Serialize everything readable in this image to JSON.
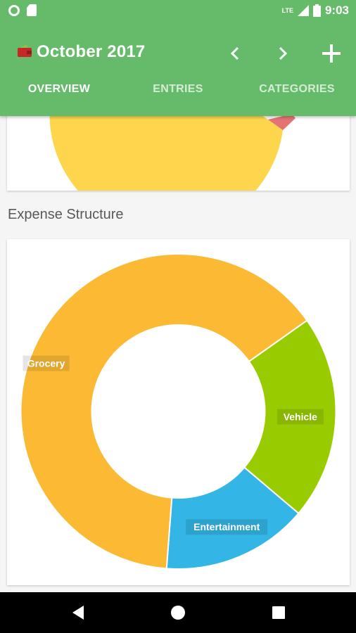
{
  "status_bar": {
    "time": "9:03",
    "network": "LTE"
  },
  "header": {
    "title": "October 2017",
    "prev_icon": "chevron-left-icon",
    "next_icon": "chevron-right-icon",
    "add_icon": "plus-icon",
    "wallet_icon": "wallet-icon"
  },
  "tabs": [
    {
      "label": "OVERVIEW",
      "active": true
    },
    {
      "label": "ENTRIES",
      "active": false
    },
    {
      "label": "CATEGORIES",
      "active": false
    }
  ],
  "expense_section": {
    "title": "Expense Structure"
  },
  "colors": {
    "primary": "#66bb6a",
    "grocery": "#fbb934",
    "vehicle": "#99cc00",
    "entertainment": "#33b5e5",
    "top_chart_yellow": "#fdd64e",
    "top_chart_red": "#e57373"
  },
  "chart_data": {
    "type": "pie",
    "title": "Expense Structure",
    "donut": true,
    "categories": [
      "Grocery",
      "Vehicle",
      "Entertainment"
    ],
    "values": [
      64,
      21,
      15
    ],
    "colors": [
      "#fbb934",
      "#99cc00",
      "#33b5e5"
    ]
  },
  "nav": {
    "back_icon": "back-icon",
    "home_icon": "home-icon",
    "recents_icon": "recents-icon"
  }
}
